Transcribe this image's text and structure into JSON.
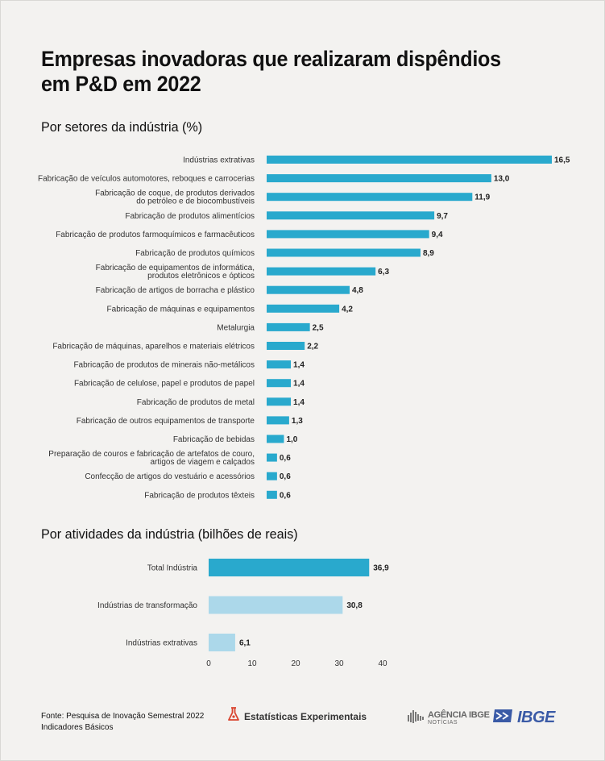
{
  "title": "Empresas inovadoras que realizaram dispêndios em P&D em 2022",
  "section1_title": "Por setores da indústria (%)",
  "section2_title": "Por atividades da indústria (bilhões de reais)",
  "colors": {
    "dark_bar": "#29a9cd",
    "light_bar": "#acd8ea",
    "background": "#f3f2f0"
  },
  "chart_data": [
    {
      "type": "bar",
      "orientation": "horizontal",
      "title": "Por setores da indústria (%)",
      "categories": [
        [
          "Indústrias extrativas"
        ],
        [
          "Fabricação de veículos automotores, reboques e carrocerias"
        ],
        [
          "Fabricação de coque, de produtos derivados",
          "do petróleo e de biocombustíveis"
        ],
        [
          "Fabricação de produtos alimentícios"
        ],
        [
          "Fabricação de produtos farmoquímicos e farmacêuticos"
        ],
        [
          "Fabricação de produtos químicos"
        ],
        [
          "Fabricação de equipamentos de informática,",
          "produtos eletrônicos e ópticos"
        ],
        [
          "Fabricação de artigos de borracha e plástico"
        ],
        [
          "Fabricação de máquinas e equipamentos"
        ],
        [
          "Metalurgia"
        ],
        [
          "Fabricação de máquinas, aparelhos e materiais elétricos"
        ],
        [
          "Fabricação de produtos de minerais não-metálicos"
        ],
        [
          "Fabricação de celulose, papel e produtos de papel"
        ],
        [
          "Fabricação de produtos de metal"
        ],
        [
          "Fabricação de outros equipamentos de transporte"
        ],
        [
          "Fabricação de bebidas"
        ],
        [
          "Preparação de couros e fabricação de artefatos de couro,",
          "artigos de viagem e calçados"
        ],
        [
          "Confecção de artigos do vestuário e acessórios"
        ],
        [
          "Fabricação de produtos têxteis"
        ]
      ],
      "values": [
        16.5,
        13.0,
        11.9,
        9.7,
        9.4,
        8.9,
        6.3,
        4.8,
        4.2,
        2.5,
        2.2,
        1.4,
        1.4,
        1.4,
        1.3,
        1.0,
        0.6,
        0.6,
        0.6
      ],
      "value_labels": [
        "16,5",
        "13,0",
        "11,9",
        "9,7",
        "9,4",
        "8,9",
        "6,3",
        "4,8",
        "4,2",
        "2,5",
        "2,2",
        "1,4",
        "1,4",
        "1,4",
        "1,3",
        "1,0",
        "0,6",
        "0,6",
        "0,6"
      ],
      "xlim": [
        0,
        16.5
      ]
    },
    {
      "type": "bar",
      "orientation": "horizontal",
      "title": "Por atividades da indústria (bilhões de reais)",
      "categories": [
        [
          "Total Indústria"
        ],
        [
          "Indústrias de transformação"
        ],
        [
          "Indústrias extrativas"
        ]
      ],
      "values": [
        36.9,
        30.8,
        6.1
      ],
      "value_labels": [
        "36,9",
        "30,8",
        "6,1"
      ],
      "bar_colors": [
        "#29a9cd",
        "#acd8ea",
        "#acd8ea"
      ],
      "xlim": [
        0,
        40
      ],
      "xticks": [
        "0",
        "10",
        "20",
        "30",
        "40"
      ]
    }
  ],
  "footer": {
    "source_line1": "Fonte: Pesquisa de Inovação Semestral 2022",
    "source_line2": "Indicadores Básicos",
    "estatisticas": "Estatísticas Experimentais",
    "agencia_main": "AGÊNCIA IBGE",
    "agencia_sub": "NOTÍCIAS",
    "ibge_logo": "IBGE"
  }
}
